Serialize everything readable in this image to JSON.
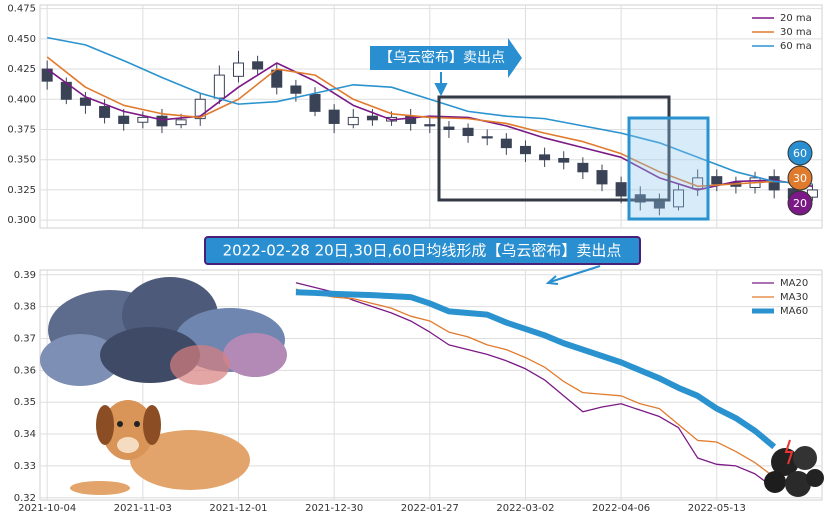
{
  "chart_data": [
    {
      "type": "candlestick",
      "ylim": [
        0.2935,
        0.478
      ],
      "yticks": [
        {
          "value": 0.3,
          "label": "0.300"
        },
        {
          "value": 0.325,
          "label": "0.325"
        },
        {
          "value": 0.35,
          "label": "0.350"
        },
        {
          "value": 0.375,
          "label": "0.375"
        },
        {
          "value": 0.4,
          "label": "0.400"
        },
        {
          "value": 0.425,
          "label": "0.425"
        },
        {
          "value": 0.45,
          "label": "0.450"
        },
        {
          "value": 0.475,
          "label": "0.475"
        }
      ],
      "xlim": [
        -1.5,
        162
      ],
      "xticks": [
        0,
        20,
        40,
        60,
        80,
        100,
        120,
        140
      ],
      "grid": true,
      "candle_color": "#3a4256",
      "candles": {
        "x": [
          0,
          4,
          8,
          12,
          16,
          20,
          24,
          28,
          32,
          36,
          40,
          44,
          48,
          52,
          56,
          60,
          64,
          68,
          72,
          76,
          80,
          84,
          88,
          92,
          96,
          100,
          104,
          108,
          112,
          116,
          120,
          124,
          128,
          132,
          136,
          140,
          144,
          148,
          152,
          156,
          160
        ],
        "open": [
          0.425,
          0.414,
          0.401,
          0.394,
          0.386,
          0.381,
          0.386,
          0.379,
          0.384,
          0.401,
          0.419,
          0.431,
          0.424,
          0.411,
          0.404,
          0.391,
          0.379,
          0.386,
          0.382,
          0.386,
          0.379,
          0.377,
          0.376,
          0.369,
          0.367,
          0.361,
          0.354,
          0.351,
          0.347,
          0.341,
          0.331,
          0.321,
          0.316,
          0.311,
          0.326,
          0.336,
          0.331,
          0.327,
          0.336,
          0.326,
          0.319
        ],
        "high": [
          0.432,
          0.418,
          0.406,
          0.4,
          0.392,
          0.39,
          0.392,
          0.388,
          0.405,
          0.428,
          0.44,
          0.436,
          0.43,
          0.416,
          0.41,
          0.396,
          0.392,
          0.392,
          0.39,
          0.392,
          0.385,
          0.382,
          0.38,
          0.375,
          0.372,
          0.366,
          0.36,
          0.357,
          0.352,
          0.346,
          0.336,
          0.328,
          0.322,
          0.33,
          0.342,
          0.342,
          0.336,
          0.34,
          0.342,
          0.332,
          0.33
        ],
        "low": [
          0.408,
          0.396,
          0.388,
          0.38,
          0.374,
          0.376,
          0.372,
          0.376,
          0.378,
          0.396,
          0.414,
          0.42,
          0.404,
          0.398,
          0.386,
          0.372,
          0.376,
          0.378,
          0.378,
          0.374,
          0.372,
          0.368,
          0.364,
          0.362,
          0.354,
          0.348,
          0.344,
          0.342,
          0.334,
          0.324,
          0.314,
          0.308,
          0.304,
          0.308,
          0.32,
          0.324,
          0.322,
          0.322,
          0.318,
          0.312,
          0.316
        ],
        "close": [
          0.415,
          0.4,
          0.395,
          0.385,
          0.38,
          0.385,
          0.378,
          0.383,
          0.4,
          0.42,
          0.43,
          0.425,
          0.41,
          0.405,
          0.39,
          0.38,
          0.385,
          0.383,
          0.385,
          0.38,
          0.378,
          0.375,
          0.37,
          0.368,
          0.36,
          0.355,
          0.35,
          0.348,
          0.34,
          0.33,
          0.32,
          0.315,
          0.31,
          0.325,
          0.335,
          0.33,
          0.328,
          0.335,
          0.325,
          0.318,
          0.325
        ]
      },
      "x": [
        0,
        8,
        16,
        24,
        32,
        40,
        48,
        56,
        64,
        72,
        80,
        88,
        96,
        104,
        112,
        120,
        128,
        136,
        144,
        152,
        160
      ],
      "series": [
        {
          "name": "20 ma",
          "color": "#7b1a86",
          "values": [
            0.425,
            0.402,
            0.39,
            0.383,
            0.386,
            0.41,
            0.43,
            0.415,
            0.395,
            0.383,
            0.386,
            0.385,
            0.378,
            0.368,
            0.36,
            0.352,
            0.335,
            0.325,
            0.332,
            0.333,
            0.328
          ]
        },
        {
          "name": "30 ma",
          "color": "#e07b2e",
          "values": [
            0.435,
            0.41,
            0.395,
            0.388,
            0.385,
            0.4,
            0.425,
            0.42,
            0.4,
            0.388,
            0.385,
            0.384,
            0.38,
            0.372,
            0.365,
            0.355,
            0.34,
            0.328,
            0.33,
            0.332,
            0.33
          ]
        },
        {
          "name": "60 ma",
          "color": "#2a93cf",
          "values": [
            0.451,
            0.445,
            0.432,
            0.418,
            0.405,
            0.396,
            0.398,
            0.405,
            0.412,
            0.41,
            0.4,
            0.39,
            0.386,
            0.384,
            0.378,
            0.372,
            0.364,
            0.352,
            0.34,
            0.332,
            0.33
          ]
        }
      ],
      "legend": "upper right",
      "annotations": {
        "signal": "【乌云密布】卖出点",
        "badges": [
          "60",
          "30",
          "20"
        ]
      }
    },
    {
      "type": "line",
      "title": "2022-02-28 20日,30日,60日均线形成【乌云密布】卖出点",
      "ylim": [
        0.3193,
        0.3915
      ],
      "yticks": [
        0.32,
        0.33,
        0.34,
        0.35,
        0.36,
        0.37,
        0.38,
        0.39
      ],
      "xlim": [
        -1.5,
        162
      ],
      "xticks": [
        {
          "value": 0,
          "label": "2021-10-04"
        },
        {
          "value": 20,
          "label": "2021-11-03"
        },
        {
          "value": 40,
          "label": "2021-12-01"
        },
        {
          "value": 60,
          "label": "2021-12-30"
        },
        {
          "value": 80,
          "label": "2022-01-27"
        },
        {
          "value": 100,
          "label": "2022-03-02"
        },
        {
          "value": 120,
          "label": "2022-04-06"
        },
        {
          "value": 140,
          "label": "2022-05-13"
        }
      ],
      "grid": true,
      "x": [
        52,
        56,
        60,
        64,
        68,
        72,
        76,
        80,
        84,
        88,
        92,
        96,
        100,
        104,
        108,
        112,
        116,
        120,
        124,
        128,
        132,
        136,
        140,
        144,
        148,
        152
      ],
      "series": [
        {
          "name": "MA20",
          "color": "#7b1a86",
          "width": 1.3,
          "values": [
            0.3875,
            0.386,
            0.3845,
            0.382,
            0.38,
            0.378,
            0.3755,
            0.372,
            0.368,
            0.3665,
            0.365,
            0.363,
            0.3605,
            0.357,
            0.352,
            0.347,
            0.3485,
            0.3495,
            0.3475,
            0.3455,
            0.342,
            0.3325,
            0.3305,
            0.33,
            0.3275,
            0.323
          ]
        },
        {
          "name": "MA30",
          "color": "#e07b2e",
          "width": 1.3,
          "values": [
            0.3855,
            0.384,
            0.383,
            0.3825,
            0.381,
            0.3795,
            0.377,
            0.3755,
            0.372,
            0.3705,
            0.368,
            0.3665,
            0.364,
            0.361,
            0.3565,
            0.353,
            0.3525,
            0.352,
            0.3495,
            0.348,
            0.343,
            0.338,
            0.3375,
            0.3345,
            0.331,
            0.3265
          ]
        },
        {
          "name": "MA60",
          "color": "#2a93cf",
          "width": 6,
          "values": [
            0.3845,
            0.3843,
            0.384,
            0.3838,
            0.3836,
            0.3833,
            0.383,
            0.381,
            0.3785,
            0.378,
            0.3775,
            0.375,
            0.373,
            0.371,
            0.3685,
            0.3665,
            0.3645,
            0.3625,
            0.36,
            0.3575,
            0.3545,
            0.352,
            0.348,
            0.345,
            0.341,
            0.336
          ]
        }
      ],
      "legend": "upper right"
    }
  ]
}
